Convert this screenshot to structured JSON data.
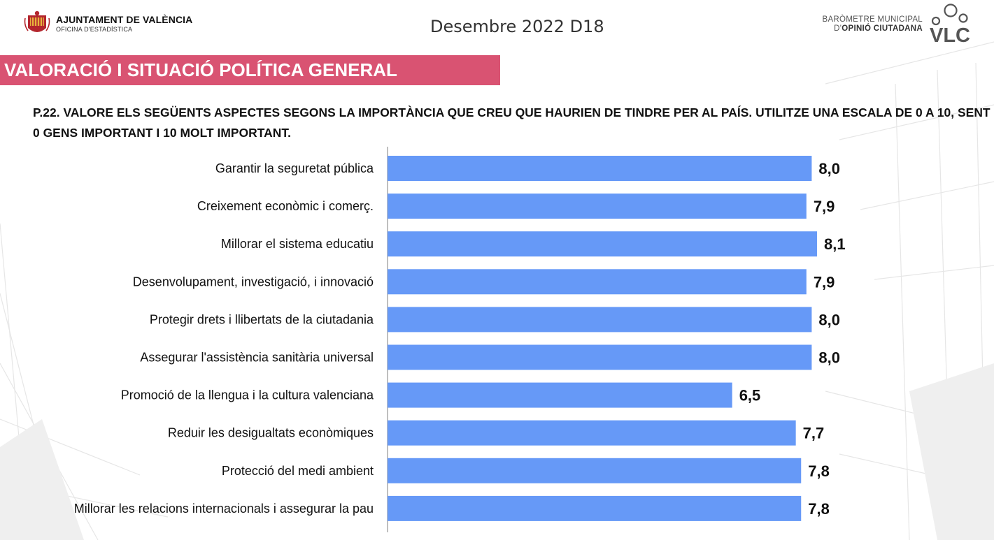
{
  "header": {
    "org_name": "AJUNTAMENT DE VALÈNCIA",
    "org_sub": "OFICINA D'ESTADÍSTICA",
    "period": "Desembre 2022 D18",
    "barometer_line1": "BARÒMETRE MUNICIPAL",
    "barometer_line2_prefix": "D'",
    "barometer_line2_bold": "OPINIÓ CIUTADANA",
    "brand_mark": "VLC"
  },
  "section": {
    "title": "VALORACIÓ I SITUACIÓ POLÍTICA GENERAL"
  },
  "question": "P.22. VALORE ELS SEGÜENTS ASPECTES SEGONS LA IMPORTÀNCIA QUE CREU QUE HAURIEN DE TINDRE PER AL PAÍS. UTILITZE UNA ESCALA DE 0 A 10, SENT 0 GENS IMPORTANT I 10 MOLT IMPORTANT.",
  "colors": {
    "banner": "#d95372",
    "bar": "#6699f7",
    "axis": "#7f7f7f"
  },
  "chart_data": {
    "type": "bar",
    "orientation": "horizontal",
    "categories": [
      "Garantir la seguretat pública",
      "Creixement econòmic i comerç.",
      "Millorar el sistema educatiu",
      "Desenvolupament, investigació, i innovació",
      "Protegir drets i llibertats de la  ciutadania",
      "Assegurar l'assistència sanitària universal",
      "Promoció de la  llengua i la cultura valenciana",
      "Reduir les desigualtats econòmiques",
      "Protecció del medi ambient",
      "Millorar les relacions internacionals i assegurar la pau"
    ],
    "values": [
      8.0,
      7.9,
      8.1,
      7.9,
      8.0,
      8.0,
      6.5,
      7.7,
      7.8,
      7.8
    ],
    "value_labels": [
      "8,0",
      "7,9",
      "8,1",
      "7,9",
      "8,0",
      "8,0",
      "6,5",
      "7,7",
      "7,8",
      "7,8"
    ],
    "xlim": [
      0,
      10
    ],
    "grid": false,
    "legend": "none"
  }
}
